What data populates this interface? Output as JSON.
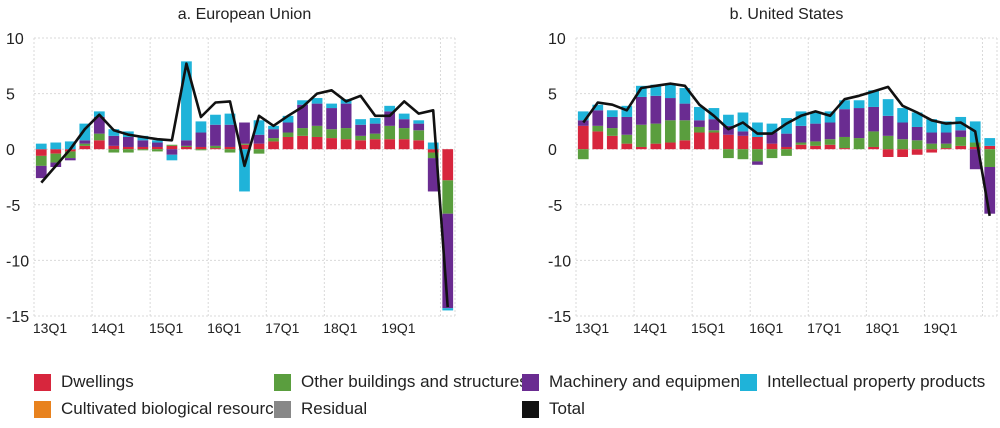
{
  "chart_data": [
    {
      "type": "bar",
      "stacked": true,
      "title": "a. European Union",
      "ylim": [
        -15,
        10
      ],
      "yticks": [
        10,
        5,
        0,
        -5,
        -10,
        -15
      ],
      "ytick_labels": [
        "10",
        "5",
        "0",
        "-5",
        "-10",
        "-15"
      ],
      "x_tick_labels": [
        "13Q1",
        "14Q1",
        "15Q1",
        "16Q1",
        "17Q1",
        "18Q1",
        "19Q1"
      ],
      "x_tick_every": 4,
      "categories": [
        "13Q1",
        "13Q2",
        "13Q3",
        "13Q4",
        "14Q1",
        "14Q2",
        "14Q3",
        "14Q4",
        "15Q1",
        "15Q2",
        "15Q3",
        "15Q4",
        "16Q1",
        "16Q2",
        "16Q3",
        "16Q4",
        "17Q1",
        "17Q2",
        "17Q3",
        "17Q4",
        "18Q1",
        "18Q2",
        "18Q3",
        "18Q4",
        "19Q1",
        "19Q2",
        "19Q3",
        "19Q4",
        "20Q1"
      ],
      "series": [
        {
          "name": "Dwellings",
          "values": [
            -0.6,
            -0.4,
            -0.2,
            0.3,
            0.8,
            0.3,
            0.2,
            0.2,
            0.2,
            0.3,
            0.2,
            0.2,
            0.1,
            0.2,
            0.4,
            0.5,
            0.7,
            1.1,
            1.2,
            1.1,
            1.0,
            0.9,
            0.8,
            0.9,
            0.9,
            0.9,
            0.8,
            -0.3,
            -2.8
          ]
        },
        {
          "name": "Other buildings and structures",
          "values": [
            -0.9,
            -0.8,
            -0.6,
            0.2,
            0.6,
            -0.3,
            -0.3,
            -0.1,
            -0.2,
            0.1,
            0.1,
            -0.1,
            0.2,
            -0.3,
            0.1,
            -0.4,
            0.3,
            0.4,
            0.7,
            1.0,
            0.8,
            1.0,
            0.4,
            0.5,
            1.2,
            1.0,
            0.9,
            -0.5,
            -3.0
          ]
        },
        {
          "name": "Machinery and equipment",
          "values": [
            -1.1,
            -0.4,
            -0.2,
            0.3,
            1.5,
            0.9,
            0.9,
            0.6,
            0.4,
            -0.5,
            0.5,
            1.3,
            1.9,
            2.0,
            1.9,
            0.8,
            0.8,
            0.9,
            2.1,
            2.0,
            1.9,
            2.2,
            1.0,
            0.9,
            1.3,
            0.8,
            0.6,
            -3.0,
            -8.5
          ]
        },
        {
          "name": "Intellectual property products",
          "values": [
            0.5,
            0.6,
            0.7,
            1.5,
            0.5,
            0.6,
            0.5,
            0.4,
            0.2,
            -0.5,
            7.1,
            1.0,
            0.9,
            1.0,
            -3.8,
            1.3,
            0.3,
            0.6,
            0.4,
            0.5,
            0.4,
            0.4,
            0.5,
            0.5,
            0.5,
            0.5,
            0.3,
            0.6,
            -0.2
          ]
        },
        {
          "name": "Cultivated biological resources",
          "values": [
            0,
            0,
            0,
            0,
            0,
            0,
            0,
            0,
            0,
            0,
            0,
            0,
            0,
            0,
            0,
            0,
            0,
            0,
            0,
            0,
            0,
            0,
            0,
            0,
            0,
            0,
            0,
            0,
            0
          ]
        },
        {
          "name": "Residual",
          "values": [
            0,
            0,
            0,
            0,
            0,
            0,
            0,
            0,
            0,
            0,
            0,
            0,
            0,
            0,
            0,
            0,
            0,
            0,
            0,
            0,
            0,
            0,
            0,
            0,
            0,
            0,
            0,
            0,
            0
          ]
        }
      ],
      "total": [
        -3.0,
        -1.5,
        0.0,
        1.8,
        3.1,
        1.7,
        1.3,
        1.1,
        0.9,
        0.8,
        7.7,
        2.9,
        4.2,
        4.3,
        -1.5,
        3.0,
        2.1,
        3.0,
        3.8,
        5.0,
        5.3,
        4.3,
        4.8,
        3.0,
        3.0,
        4.3,
        3.2,
        3.5,
        -14.2
      ]
    },
    {
      "type": "bar",
      "stacked": true,
      "title": "b. United States",
      "ylim": [
        -15,
        10
      ],
      "yticks": [
        10,
        5,
        0,
        -5,
        -10,
        -15
      ],
      "ytick_labels": [
        "10",
        "5",
        "0",
        "-5",
        "-10",
        "-15"
      ],
      "x_tick_labels": [
        "13Q1",
        "14Q1",
        "15Q1",
        "16Q1",
        "17Q1",
        "18Q1",
        "19Q1"
      ],
      "x_tick_every": 4,
      "categories": [
        "13Q1",
        "13Q2",
        "13Q3",
        "13Q4",
        "14Q1",
        "14Q2",
        "14Q3",
        "14Q4",
        "15Q1",
        "15Q2",
        "15Q3",
        "15Q4",
        "16Q1",
        "16Q2",
        "16Q3",
        "16Q4",
        "17Q1",
        "17Q2",
        "17Q3",
        "17Q4",
        "18Q1",
        "18Q2",
        "18Q3",
        "18Q4",
        "19Q1",
        "19Q2",
        "19Q3",
        "19Q4",
        "20Q1"
      ],
      "series": [
        {
          "name": "Dwellings",
          "values": [
            2.1,
            1.6,
            1.2,
            0.5,
            0.2,
            0.5,
            0.6,
            0.8,
            1.5,
            1.5,
            1.3,
            1.2,
            1.1,
            0.5,
            0.2,
            0.4,
            0.3,
            0.4,
            0.1,
            0.0,
            0.2,
            -0.7,
            -0.7,
            -0.5,
            -0.3,
            0.1,
            0.3,
            0.2,
            0.3
          ]
        },
        {
          "name": "Other buildings and structures",
          "values": [
            -0.9,
            0.5,
            0.7,
            0.8,
            2.0,
            1.8,
            2.0,
            1.8,
            0.5,
            0.2,
            -0.8,
            -0.9,
            -1.1,
            -0.8,
            -0.6,
            0.2,
            0.4,
            0.5,
            1.0,
            1.0,
            1.4,
            1.2,
            0.9,
            0.8,
            0.5,
            0.4,
            0.8,
            0.4,
            -1.6
          ]
        },
        {
          "name": "Machinery and equipment",
          "values": [
            0.5,
            1.4,
            1.0,
            1.6,
            2.5,
            2.5,
            2.0,
            1.5,
            0.6,
            1.0,
            0.8,
            0.4,
            -0.3,
            1.0,
            1.2,
            1.5,
            1.6,
            1.5,
            2.5,
            2.7,
            2.2,
            1.8,
            1.5,
            1.2,
            1.0,
            1.0,
            0.6,
            -1.8,
            -4.2
          ]
        },
        {
          "name": "Intellectual property products",
          "values": [
            0.8,
            0.5,
            0.6,
            1.0,
            1.0,
            1.0,
            1.3,
            1.4,
            1.2,
            1.0,
            1.0,
            1.7,
            1.3,
            0.8,
            1.4,
            1.3,
            1.0,
            1.0,
            0.8,
            0.7,
            1.5,
            1.5,
            1.3,
            1.3,
            1.2,
            1.0,
            1.2,
            1.9,
            0.7
          ]
        },
        {
          "name": "Cultivated biological resources",
          "values": [
            0,
            0,
            0,
            0,
            0,
            0,
            0,
            0,
            0,
            0,
            0,
            0,
            0,
            0,
            0,
            0,
            0,
            0,
            0,
            0,
            0,
            0,
            0,
            0,
            0,
            0,
            0,
            0,
            0
          ]
        },
        {
          "name": "Residual",
          "values": [
            0,
            0,
            0,
            0,
            0,
            0,
            0,
            0,
            0,
            0,
            0,
            0,
            0,
            0,
            0,
            0,
            0,
            0,
            0,
            0,
            0,
            0,
            0,
            0,
            0,
            0,
            0,
            0,
            0
          ]
        }
      ],
      "total": [
        2.4,
        4.2,
        4.0,
        3.5,
        5.5,
        5.7,
        5.9,
        5.7,
        4.0,
        3.0,
        1.8,
        2.4,
        1.4,
        1.4,
        2.3,
        3.0,
        3.4,
        3.0,
        4.5,
        4.8,
        5.2,
        5.6,
        3.9,
        3.3,
        2.6,
        2.3,
        2.4,
        1.6,
        -6.0
      ]
    }
  ],
  "legend": {
    "items": [
      {
        "label": "Dwellings",
        "color": "#d7263d"
      },
      {
        "label": "Other buildings and structures",
        "color": "#5a9e3e"
      },
      {
        "label": "Machinery and equipment",
        "color": "#6a2c91"
      },
      {
        "label": "Intellectual property products",
        "color": "#1fb3d9"
      },
      {
        "label": "Cultivated biological resources",
        "color": "#e8821e"
      },
      {
        "label": "Residual",
        "color": "#888888"
      },
      {
        "label": "Total",
        "color": "#111111"
      }
    ]
  }
}
